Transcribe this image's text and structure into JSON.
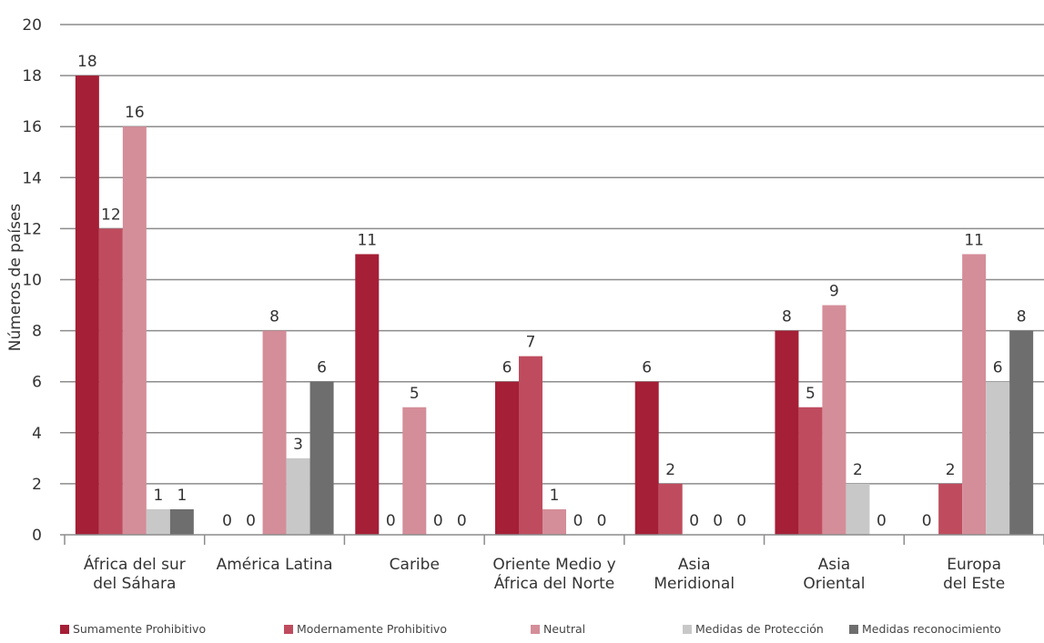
{
  "chart_data": {
    "type": "bar",
    "ylabel": "Números de países",
    "ylim": [
      0,
      20
    ],
    "yticks": [
      0,
      2,
      4,
      6,
      8,
      10,
      12,
      14,
      16,
      18,
      20
    ],
    "grid": true,
    "legend_position": "bottom",
    "categories": [
      [
        "África del sur",
        "del Sáhara"
      ],
      [
        "América Latina"
      ],
      [
        "Caribe"
      ],
      [
        "Oriente Medio y",
        "África del Norte"
      ],
      [
        "Asia",
        "Meridional"
      ],
      [
        "Asia",
        "Oriental"
      ],
      [
        "Europa",
        "del Este"
      ]
    ],
    "series": [
      {
        "name": "Sumamente Prohibitivo",
        "color": "#A51F36",
        "values": [
          18,
          0,
          11,
          6,
          6,
          8,
          0
        ]
      },
      {
        "name": "Modernamente Prohibitivo",
        "color": "#BF4C5E",
        "values": [
          12,
          0,
          0,
          7,
          2,
          5,
          2
        ]
      },
      {
        "name": "Neutral",
        "color": "#D48E99",
        "values": [
          16,
          8,
          5,
          1,
          0,
          9,
          11
        ]
      },
      {
        "name": "Medidas de Protección",
        "color": "#C8C8C8",
        "values": [
          1,
          3,
          0,
          0,
          0,
          2,
          6
        ]
      },
      {
        "name": "Medidas reconocimiento",
        "color": "#6E6E6E",
        "values": [
          1,
          6,
          0,
          0,
          0,
          0,
          8
        ]
      }
    ]
  }
}
